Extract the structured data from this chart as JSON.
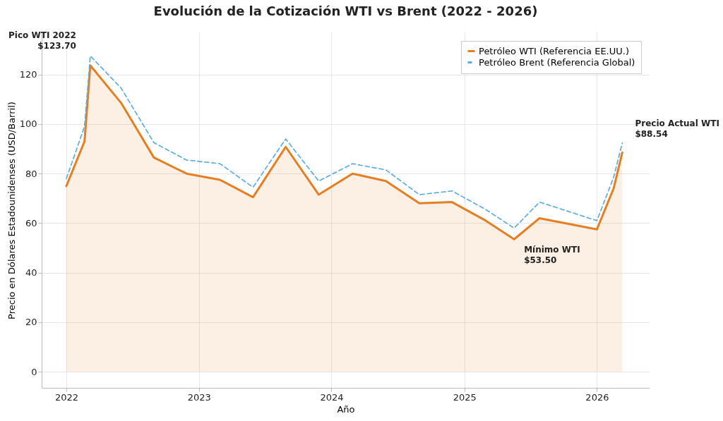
{
  "chart_data": {
    "type": "line",
    "title": "Evolución de la Cotización WTI vs Brent (2022 - 2026)",
    "xlabel": "Año",
    "ylabel": "Precio en Dólares Estadounidenses (USD/Barril)",
    "x": [
      "2022-01-01",
      "2022-02-20",
      "2022-03-08",
      "2022-06-01",
      "2022-08-30",
      "2022-11-28",
      "2023-02-28",
      "2023-05-30",
      "2023-08-28",
      "2023-11-27",
      "2024-02-28",
      "2024-05-30",
      "2024-08-30",
      "2024-11-28",
      "2025-03-01",
      "2025-05-18",
      "2025-07-27",
      "2026-01-01",
      "2026-02-16",
      "2026-03-12"
    ],
    "series": [
      {
        "name": "Petróleo WTI (Referencia EE.UU.)",
        "color": "#e67e22",
        "line_style": "solid",
        "type": "area",
        "values": [
          75,
          93,
          123.7,
          108.5,
          86.5,
          80,
          77.5,
          70.5,
          90.8,
          71.5,
          80,
          77,
          68,
          68.5,
          61,
          53.5,
          62,
          57.5,
          74,
          88.54
        ]
      },
      {
        "name": "Petróleo Brent (Referencia Global)",
        "color": "#5dade2",
        "line_style": "dashed",
        "values": [
          78,
          99,
          127.5,
          114.5,
          92.5,
          85.5,
          84,
          74.5,
          94,
          77,
          84,
          81.5,
          71.5,
          73,
          65.5,
          58,
          68.5,
          61,
          78.5,
          92.4
        ]
      }
    ],
    "xlim": [
      "2021-10-25",
      "2026-05-26"
    ],
    "ylim": [
      -6.5,
      137
    ],
    "xticks": [
      "2022",
      "2023",
      "2024",
      "2025",
      "2026"
    ],
    "yticks": [
      0,
      20,
      40,
      60,
      80,
      100,
      120
    ],
    "grid": true,
    "legend": "top right",
    "marker": "none",
    "annotations": [
      {
        "text": "Pico WTI 2022\n$123.70",
        "x": "2022-03-08",
        "y": 123.7
      },
      {
        "text": "Mínimo WTI\n$53.50",
        "x": "2025-05-18",
        "y": 53.5
      },
      {
        "text": "Precio Actual WTI\n$88.54",
        "x": "2026-03-12",
        "y": 88.54
      }
    ]
  }
}
